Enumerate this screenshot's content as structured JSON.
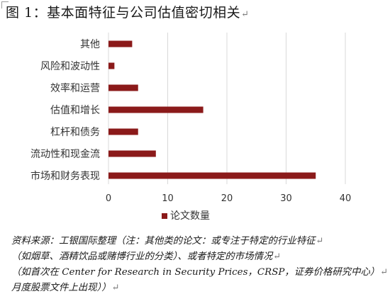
{
  "figure": {
    "title": "图 1：基本面特征与公司估值密切相关"
  },
  "chart_data": {
    "type": "bar",
    "orientation": "horizontal",
    "categories": [
      "其他",
      "风险和波动性",
      "效率和运营",
      "估值和增长",
      "杠杆和债务",
      "流动性和现金流",
      "市场和财务表现"
    ],
    "series": [
      {
        "name": "论文数量",
        "values": [
          4,
          1,
          5,
          16,
          5,
          8,
          35
        ],
        "color": "#8b1a1a"
      }
    ],
    "xlim": [
      0,
      40
    ],
    "xticks": [
      0,
      10,
      20,
      30,
      40
    ],
    "xtick_labels": [
      "0",
      "10",
      "20",
      "30",
      "40"
    ],
    "grid": "vertical",
    "legend_position": "bottom"
  },
  "source": {
    "lines": [
      "资料来源：工银国际整理（注：其他类的论文：或专注于特定的行业特征",
      "（如烟草、酒精饮品或赌博行业的分类）、或者特定的市场情况",
      "（如首次在 Center for Research in Security Prices，CRSP，证券价格研究中心）",
      "月度股票文件上出现））"
    ]
  }
}
